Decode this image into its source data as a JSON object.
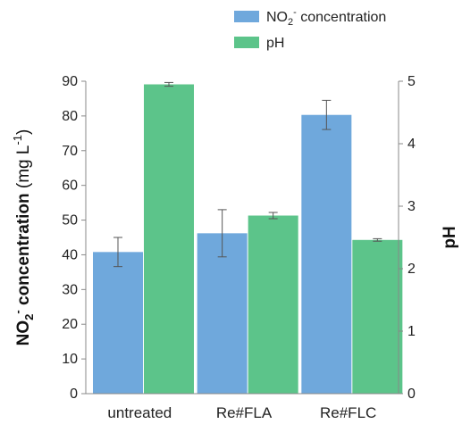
{
  "chart_data": {
    "type": "bar",
    "categories": [
      "untreated",
      "Re#FLA",
      "Re#FLC"
    ],
    "series": [
      {
        "name": "NO₂⁻ concentration",
        "axis": "left",
        "color": "#6fa8dc",
        "values": [
          40.8,
          46.2,
          80.3
        ],
        "errors": [
          4.2,
          6.8,
          4.2
        ]
      },
      {
        "name": "pH",
        "axis": "right",
        "color": "#5cc48a",
        "values": [
          4.95,
          2.85,
          2.46
        ],
        "errors": [
          0.03,
          0.05,
          0.02
        ]
      }
    ],
    "ylabel_left": "NO₂⁻ concentration (mg L⁻¹)",
    "ylabel_right": "pH",
    "ylim_left": [
      0,
      90
    ],
    "yticks_left": [
      0,
      10,
      20,
      30,
      40,
      50,
      60,
      70,
      80,
      90
    ],
    "ylim_right": [
      0,
      5
    ],
    "yticks_right": [
      0,
      1,
      2,
      3,
      4,
      5
    ],
    "legend_position": "top-right",
    "grid": false
  }
}
